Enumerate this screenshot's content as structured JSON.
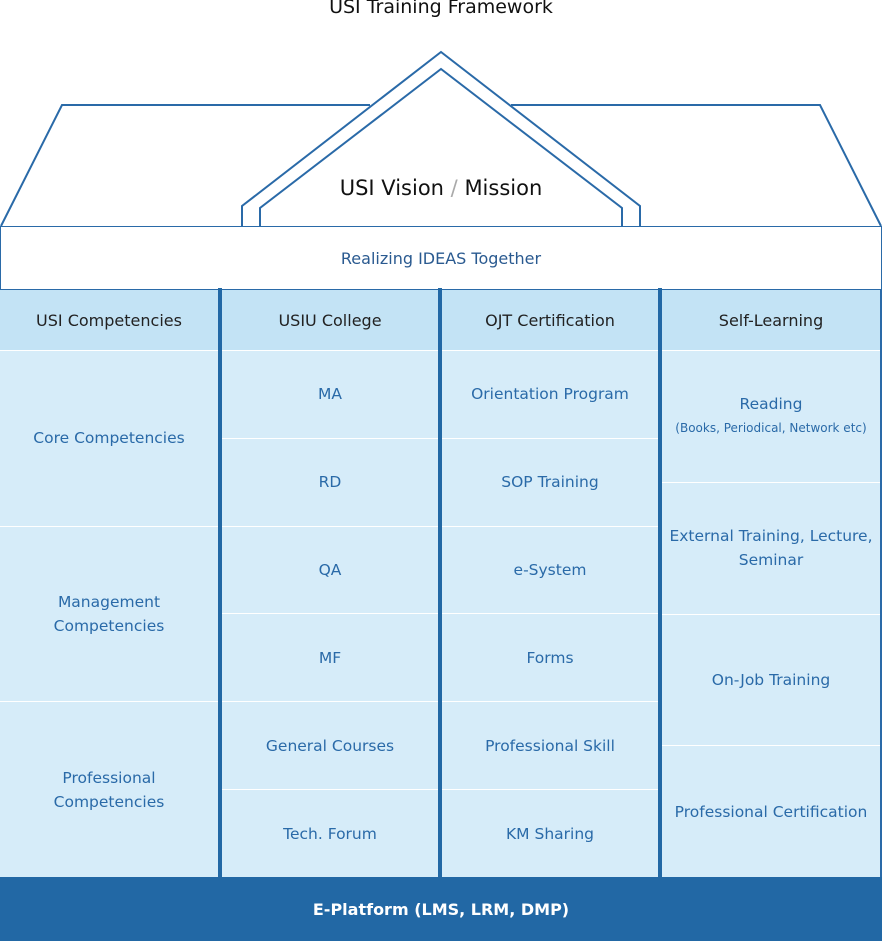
{
  "title": "USI Training Framework",
  "vision": {
    "part1": "USI Vision",
    "separator": "/",
    "part2": "Mission"
  },
  "band": "Realizing IDEAS Together",
  "columns": [
    {
      "header": "USI Competencies",
      "cells": [
        {
          "label": "Core Competencies"
        },
        {
          "label": "Management Competencies"
        },
        {
          "label": "Professional Competencies"
        }
      ]
    },
    {
      "header": "USIU College",
      "cells": [
        {
          "label": "MA"
        },
        {
          "label": "RD"
        },
        {
          "label": "QA"
        },
        {
          "label": "MF"
        },
        {
          "label": "General Courses"
        },
        {
          "label": "Tech. Forum"
        }
      ]
    },
    {
      "header": "OJT Certification",
      "cells": [
        {
          "label": "Orientation Program"
        },
        {
          "label": "SOP Training"
        },
        {
          "label": "e-System"
        },
        {
          "label": "Forms"
        },
        {
          "label": "Professional Skill"
        },
        {
          "label": "KM Sharing"
        }
      ]
    },
    {
      "header": "Self-Learning",
      "cells": [
        {
          "label": "Reading",
          "sub": "(Books, Periodical, Network etc)"
        },
        {
          "label": "External Training, Lecture, Seminar"
        },
        {
          "label": "On-Job Training"
        },
        {
          "label": "Professional Certification"
        }
      ]
    }
  ],
  "footer": "E-Platform (LMS, LRM, DMP)",
  "colors": {
    "line": "#2268a5",
    "header_cell": "#c3e3f5",
    "body_cell": "#d6ecf9",
    "cell_text": "#2a6aa8"
  }
}
